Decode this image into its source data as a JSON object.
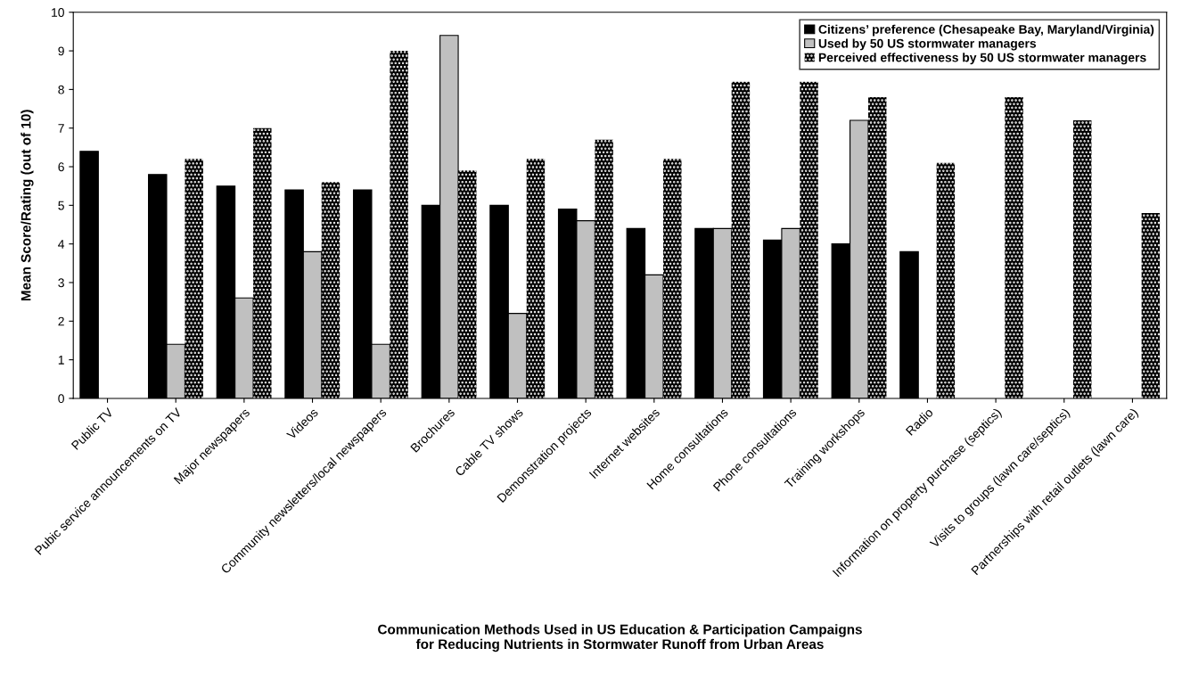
{
  "chart_data": {
    "type": "bar",
    "xlabel": "Communication Methods Used in US Education & Participation Campaigns\nfor Reducing Nutrients in Stormwater Runoff from Urban Areas",
    "ylabel": "Mean Score/Rating (out of 10)",
    "categories": [
      "Public TV",
      "Pubic service announcements on TV",
      "Major newspapers",
      "Videos",
      "Community newsletters/local newspapers",
      "Brochures",
      "Cable TV shows",
      "Demonstration projects",
      "Internet websites",
      "Home consultations",
      "Phone consultations",
      "Training workshops",
      "Radio",
      "Information on property purchase (septics)",
      "Visits to groups (lawn care/septics)",
      "Partnerships with retail outlets (lawn care)"
    ],
    "series": [
      {
        "name": "Citizens’ preference (Chesapeake Bay, Maryland/Virginia)",
        "color": "#000000",
        "values": [
          6.4,
          5.8,
          5.5,
          5.4,
          5.4,
          5.0,
          5.0,
          4.9,
          4.4,
          4.4,
          4.1,
          4.0,
          3.8,
          null,
          null,
          null
        ]
      },
      {
        "name": "Used by 50 US stormwater managers",
        "color": "#c0c0c0",
        "values": [
          null,
          1.4,
          2.6,
          3.8,
          1.4,
          9.4,
          2.2,
          4.6,
          3.2,
          4.4,
          4.4,
          7.2,
          null,
          null,
          null,
          null
        ]
      },
      {
        "name": "Perceived effectiveness by 50 US stormwater managers",
        "color": "#000000",
        "values": [
          null,
          6.2,
          7.0,
          5.6,
          9.0,
          5.9,
          6.2,
          6.7,
          6.2,
          8.2,
          8.2,
          7.8,
          6.1,
          7.8,
          7.2,
          4.8
        ]
      }
    ],
    "ylim": [
      0,
      10
    ],
    "yticks": [
      0,
      1,
      2,
      3,
      4,
      5,
      6,
      7,
      8,
      9,
      10
    ],
    "grid": false,
    "legend": "top right"
  }
}
